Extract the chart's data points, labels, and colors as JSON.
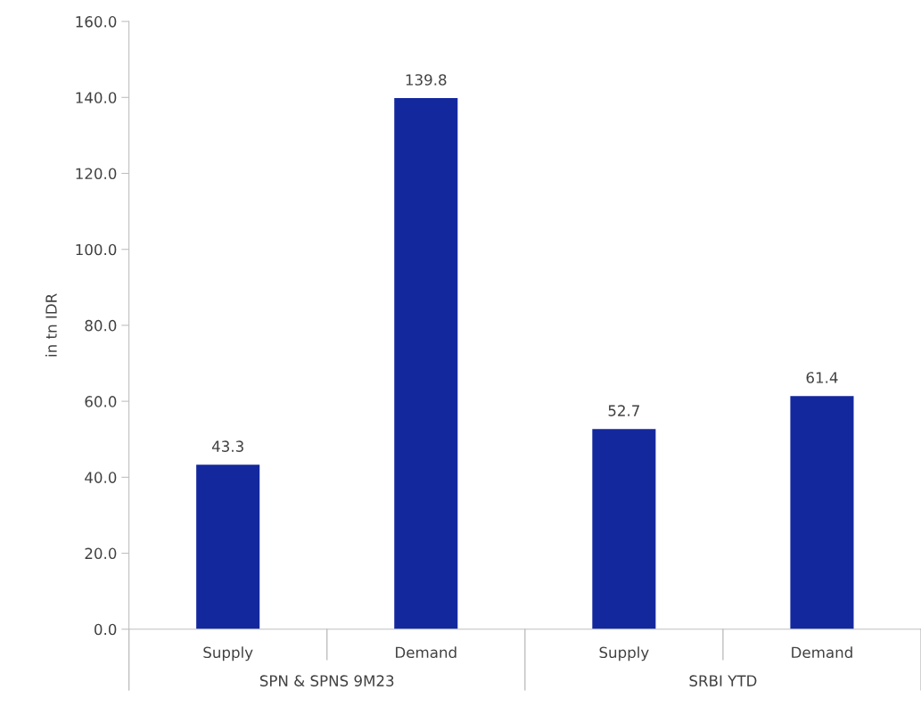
{
  "chart_data": {
    "type": "bar",
    "ylabel": "in tn IDR",
    "categories": [
      "Supply",
      "Demand",
      "Supply",
      "Demand"
    ],
    "values": [
      43.3,
      139.8,
      52.7,
      61.4
    ],
    "color": "#14289e",
    "ylim": [
      0,
      160
    ],
    "yticks": [
      {
        "value": 0,
        "label": "0.0"
      },
      {
        "value": 20,
        "label": "20.0"
      },
      {
        "value": 40,
        "label": "40.0"
      },
      {
        "value": 60,
        "label": "60.0"
      },
      {
        "value": 80,
        "label": "80.0"
      },
      {
        "value": 100,
        "label": "100.0"
      },
      {
        "value": 120,
        "label": "120.0"
      },
      {
        "value": 140,
        "label": "140.0"
      },
      {
        "value": 160,
        "label": "160.0"
      }
    ],
    "data_labels": true,
    "grid": false,
    "legend": false,
    "annotations": [
      "SPN & SPNS 9M23",
      "SRBI YTD"
    ]
  }
}
